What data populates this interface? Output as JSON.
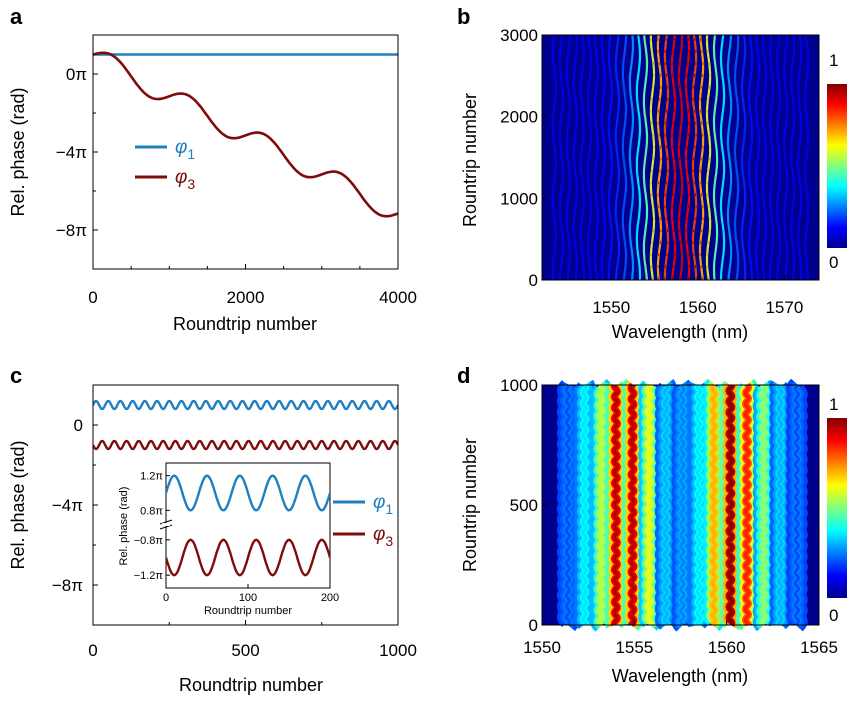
{
  "chart_data": [
    {
      "panel": "a",
      "type": "line",
      "xlabel": "Roundtrip number",
      "ylabel": "Rel. phase (rad)",
      "xlim": [
        0,
        4000
      ],
      "ylim_pi": [
        -10,
        2
      ],
      "x_ticks": [
        "0",
        "2000",
        "4000"
      ],
      "x_tick_values": [
        0,
        2000,
        4000
      ],
      "y_ticks": [
        "0π",
        "−4π",
        "−8π"
      ],
      "y_tick_values_pi": [
        0,
        -4,
        -8
      ],
      "legend_position": "middle-left",
      "series": [
        {
          "name": "φ1",
          "name_base": "φ",
          "name_sub": "1",
          "color": "#1f7fbf",
          "x": [
            0,
            4000
          ],
          "y_pi": [
            1,
            1
          ]
        },
        {
          "name": "φ3",
          "name_base": "φ",
          "name_sub": "3",
          "color": "#7f0c0c",
          "x": [
            0,
            200,
            400,
            600,
            800,
            1000,
            1200,
            1400,
            1600,
            1800,
            2000,
            2200,
            2400,
            2600,
            2800,
            3000,
            3200,
            3400,
            3600,
            3800,
            4000
          ],
          "y_pi": [
            1,
            0.9,
            0.4,
            -0.3,
            -0.8,
            -1.0,
            -1.2,
            -1.8,
            -2.5,
            -2.9,
            -3.0,
            -3.1,
            -3.5,
            -4.2,
            -4.8,
            -5.0,
            -5.1,
            -5.5,
            -6.2,
            -6.8,
            -7.0
          ]
        }
      ]
    },
    {
      "panel": "b",
      "type": "heatmap",
      "xlabel": "Wavelength (nm)",
      "ylabel": "Rountrip number",
      "xlim": [
        1542,
        1574
      ],
      "ylim": [
        0,
        3000
      ],
      "x_ticks": [
        "1550",
        "1560",
        "1570"
      ],
      "x_tick_values": [
        1550,
        1560,
        1570
      ],
      "y_ticks": [
        "0",
        "1000",
        "2000",
        "3000"
      ],
      "y_tick_values": [
        0,
        1000,
        2000,
        3000
      ],
      "colorbar_labels": [
        "0",
        "1"
      ],
      "stripe_center": 1558,
      "stripe_spacing": 0.45,
      "envelope_width": 4.5,
      "wobble_amplitude": 0.18,
      "wobble_period": 900
    },
    {
      "panel": "c",
      "type": "line",
      "xlabel": "Roundtrip number",
      "ylabel": "Rel. phase (rad)",
      "xlim": [
        0,
        1000
      ],
      "ylim_pi": [
        -10,
        2
      ],
      "x_ticks": [
        "0",
        "500",
        "1000"
      ],
      "x_tick_values": [
        0,
        500,
        1000
      ],
      "y_ticks": [
        "0",
        "−4π",
        "−8π"
      ],
      "y_tick_values_pi": [
        0,
        -4,
        -8
      ],
      "legend_position": "right",
      "series": [
        {
          "name": "φ1",
          "name_base": "φ",
          "name_sub": "1",
          "color": "#1f7fbf",
          "mean_pi": 1.0,
          "amplitude_pi": 0.2,
          "period": 40,
          "phase": 0
        },
        {
          "name": "φ3",
          "name_base": "φ",
          "name_sub": "3",
          "color": "#7f0c0c",
          "mean_pi": -1.0,
          "amplitude_pi": 0.2,
          "period": 40,
          "phase": 3.14159
        }
      ],
      "inset": {
        "xlabel": "Roundtrip number",
        "ylabel": "Rel. phase (rad)",
        "xlim": [
          0,
          200
        ],
        "x_ticks": [
          "0",
          "100",
          "200"
        ],
        "x_tick_values": [
          0,
          100,
          200
        ],
        "y_ticks": [
          "1.2π",
          "0.8π",
          "−0.8π",
          "−1.2π"
        ],
        "upper_range_pi": [
          0.7,
          1.3
        ],
        "lower_range_pi": [
          -1.3,
          -0.7
        ],
        "axis_break": true
      }
    },
    {
      "panel": "d",
      "type": "heatmap",
      "xlabel": "Wavelength (nm)",
      "ylabel": "Rountrip number",
      "xlim": [
        1550,
        1565
      ],
      "ylim": [
        0,
        1000
      ],
      "x_ticks": [
        "1550",
        "1555",
        "1560",
        "1565"
      ],
      "x_tick_values": [
        1550,
        1555,
        1560,
        1565
      ],
      "y_ticks": [
        "0",
        "500",
        "1000"
      ],
      "y_tick_values": [
        0,
        500,
        1000
      ],
      "colorbar_labels": [
        "0",
        "1"
      ],
      "stripes": [
        {
          "center": 1551.4,
          "intensity": 0.2
        },
        {
          "center": 1552.3,
          "intensity": 0.35
        },
        {
          "center": 1553.2,
          "intensity": 0.55
        },
        {
          "center": 1554.0,
          "intensity": 0.95
        },
        {
          "center": 1554.9,
          "intensity": 0.95
        },
        {
          "center": 1555.8,
          "intensity": 0.6
        },
        {
          "center": 1556.7,
          "intensity": 0.3
        },
        {
          "center": 1557.6,
          "intensity": 0.25
        },
        {
          "center": 1558.5,
          "intensity": 0.35
        },
        {
          "center": 1559.3,
          "intensity": 0.7
        },
        {
          "center": 1560.2,
          "intensity": 1.0
        },
        {
          "center": 1561.1,
          "intensity": 0.85
        },
        {
          "center": 1562.0,
          "intensity": 0.5
        },
        {
          "center": 1562.9,
          "intensity": 0.3
        },
        {
          "center": 1563.8,
          "intensity": 0.2
        }
      ],
      "stripe_sigma_nm": 0.18,
      "wobble_amplitude_nm": 0.09,
      "wobble_period": 45
    }
  ],
  "panels": {
    "a": {
      "letter": "a"
    },
    "b": {
      "letter": "b"
    },
    "c": {
      "letter": "c"
    },
    "d": {
      "letter": "d"
    }
  },
  "colors": {
    "axis": "#000000",
    "series_blue": "#1f7fbf",
    "series_red": "#7f0c0c",
    "heatmap_bg": "#00008f"
  }
}
